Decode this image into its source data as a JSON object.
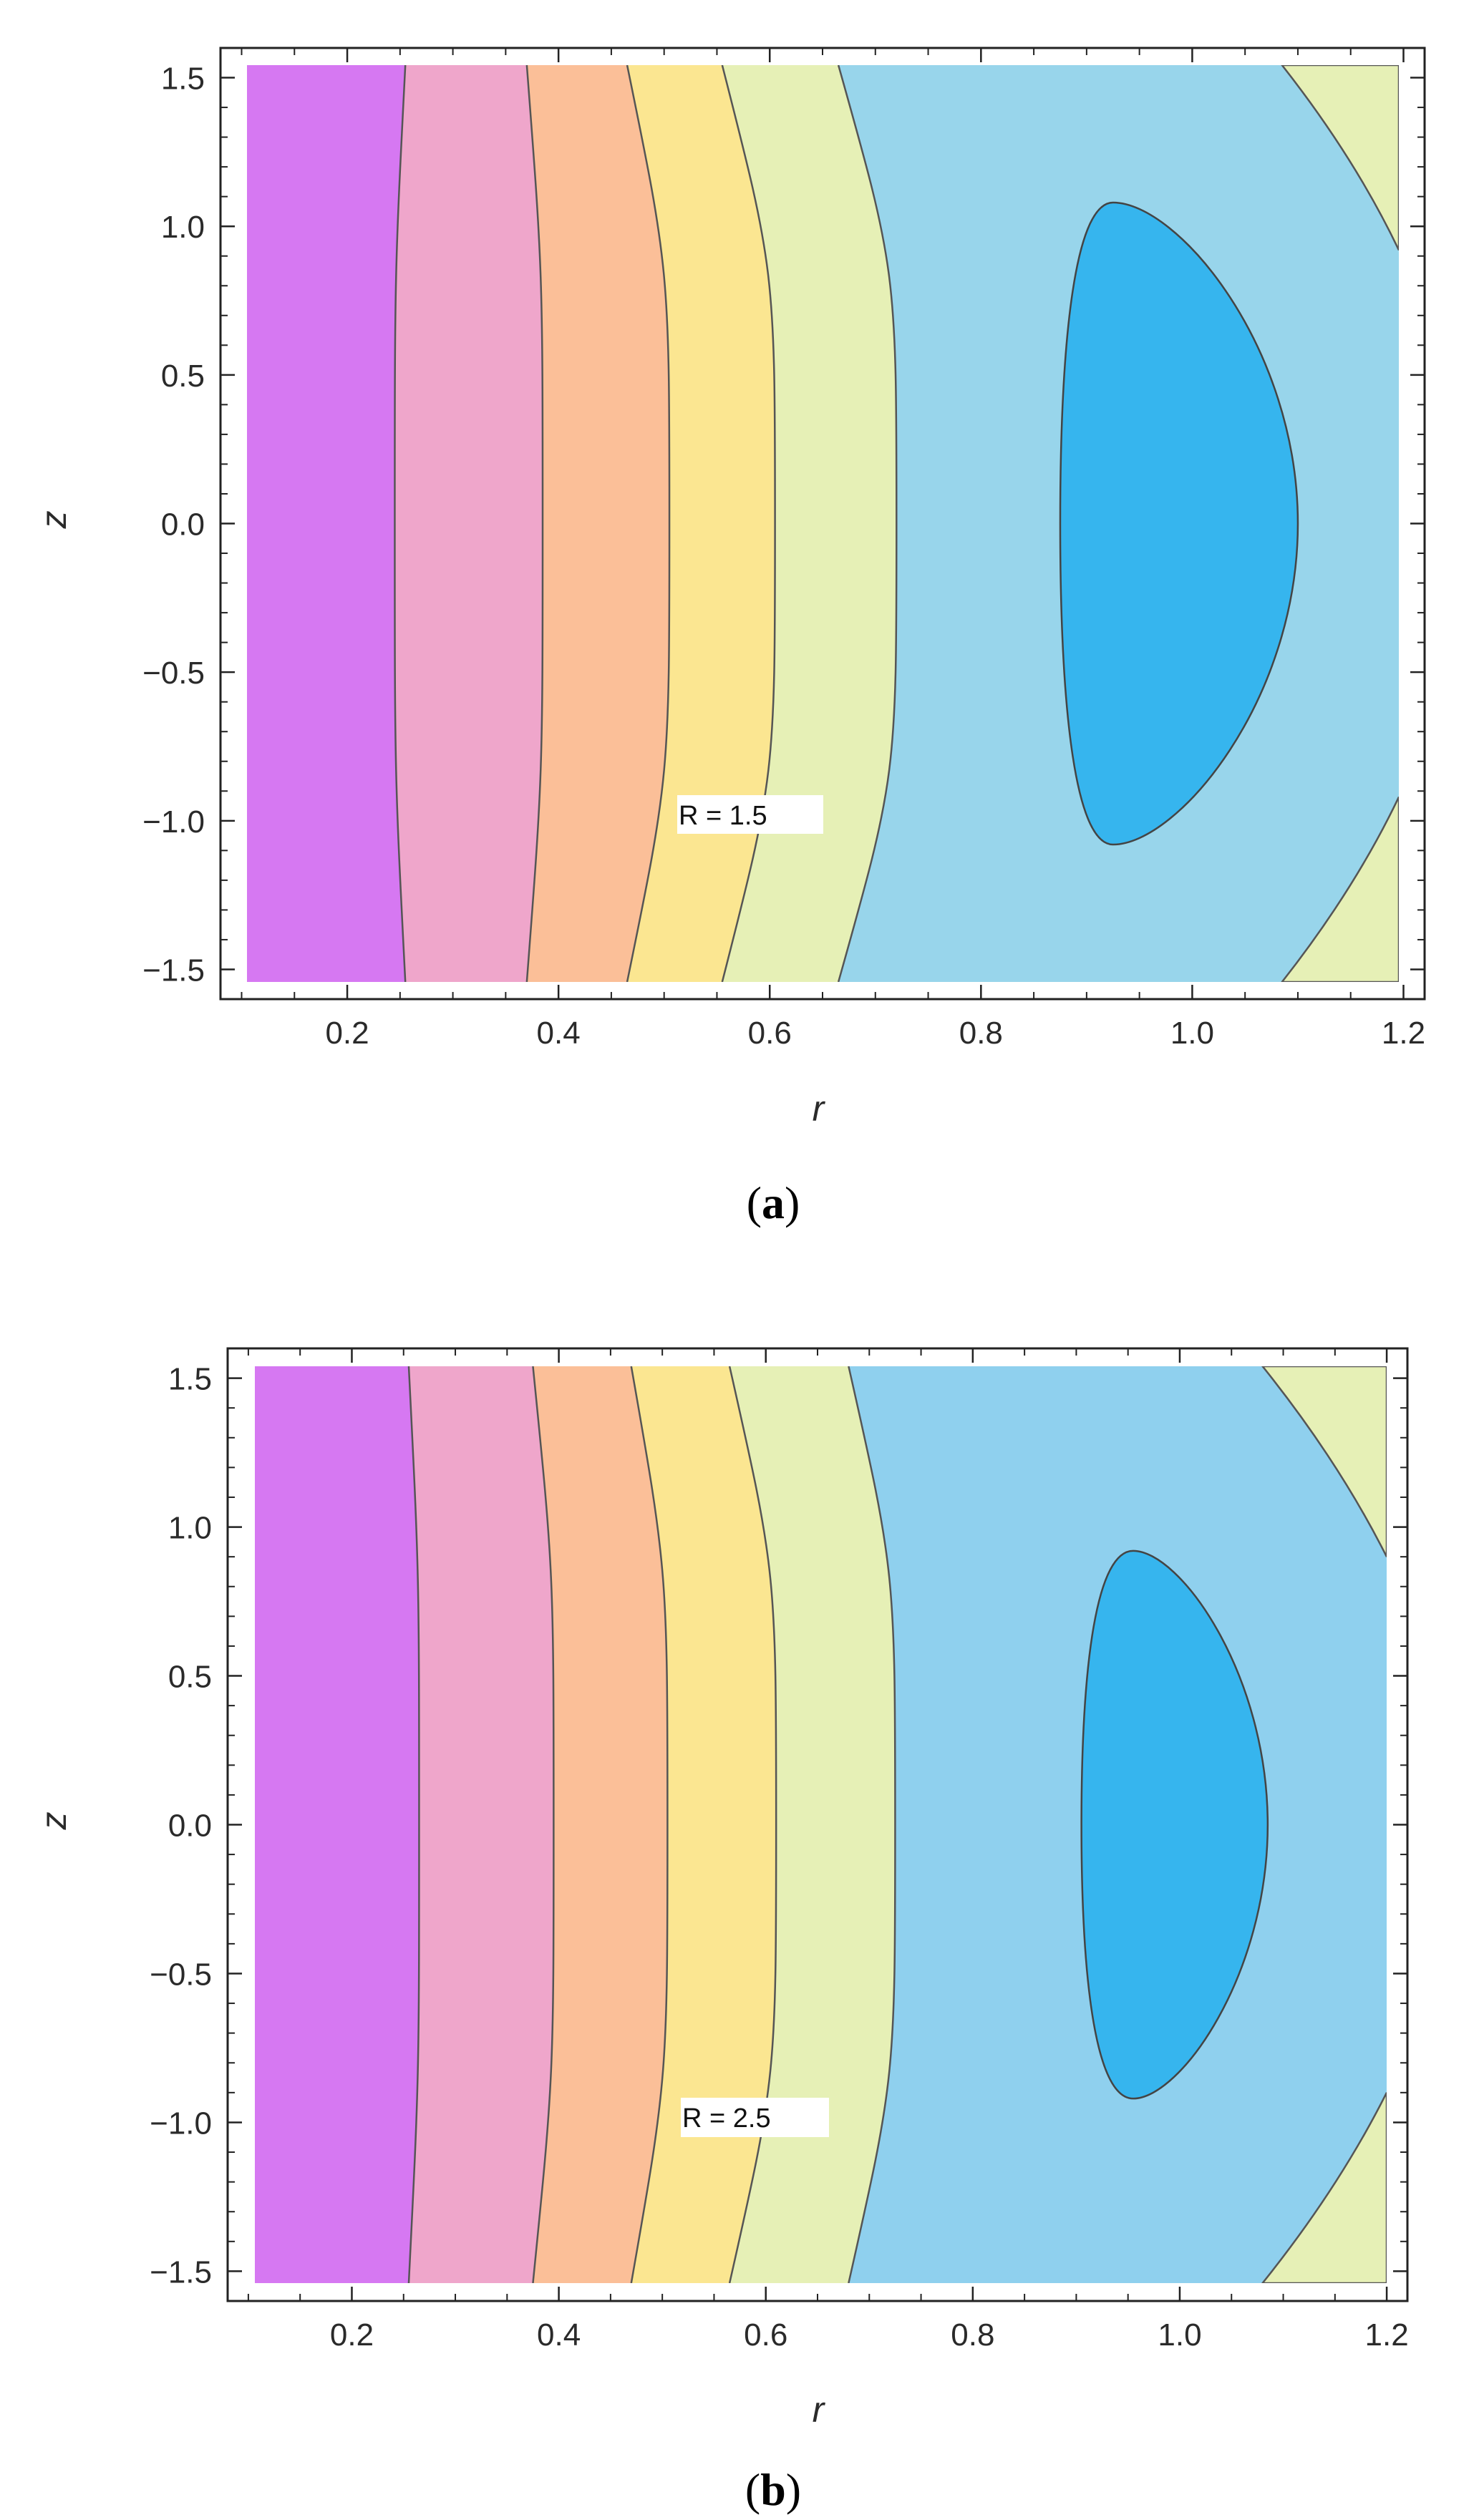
{
  "chart_data": [
    {
      "type": "contour",
      "panel": "a",
      "caption_letter": "a",
      "annotation": "R = 1.5",
      "xlabel": "r",
      "ylabel": "z",
      "xlim": [
        0.08,
        1.22
      ],
      "ylim": [
        -1.6,
        1.6
      ],
      "xticks": [
        "0.2",
        "0.4",
        "0.6",
        "0.8",
        "1.0",
        "1.2"
      ],
      "yticks": [
        "1.5",
        "1.0",
        "0.5",
        "0.0",
        "−0.5",
        "−1.0",
        "−1.5"
      ],
      "grid": false,
      "legend": "none",
      "bands": [
        {
          "color": "#d678f2",
          "r_mid": 0.245,
          "r_edge": 0.255
        },
        {
          "color": "#efa6cb",
          "r_mid": 0.385,
          "r_edge": 0.37
        },
        {
          "color": "#fbbf98",
          "r_mid": 0.505,
          "r_edge": 0.465
        },
        {
          "color": "#fbe691",
          "r_mid": 0.605,
          "r_edge": 0.555
        },
        {
          "color": "#e6f0b6",
          "r_mid": 0.72,
          "r_edge": 0.665
        },
        {
          "color": "#98d5eb"
        }
      ],
      "corner_color": "#e6f0b6",
      "corner_contour": {
        "r_top": 1.085,
        "z_edge": 0.92
      },
      "inner_region": {
        "color": "#36b5ee",
        "r_left": 0.875,
        "r_right": 1.1,
        "r_peak": 0.925,
        "z_half": 1.08
      }
    },
    {
      "type": "contour",
      "panel": "b",
      "caption_letter": "b",
      "annotation": "R = 2.5",
      "xlabel": "r",
      "ylabel": "z",
      "xlim": [
        0.08,
        1.22
      ],
      "ylim": [
        -1.6,
        1.6
      ],
      "xticks": [
        "0.2",
        "0.4",
        "0.6",
        "0.8",
        "1.0",
        "1.2"
      ],
      "yticks": [
        "1.5",
        "1.0",
        "0.5",
        "0.0",
        "−0.5",
        "−1.0",
        "−1.5"
      ],
      "grid": false,
      "legend": "none",
      "bands": [
        {
          "color": "#d678f2",
          "r_mid": 0.265,
          "r_edge": 0.255
        },
        {
          "color": "#efa6cb",
          "r_mid": 0.395,
          "r_edge": 0.375
        },
        {
          "color": "#fbbf98",
          "r_mid": 0.505,
          "r_edge": 0.47
        },
        {
          "color": "#fbe691",
          "r_mid": 0.61,
          "r_edge": 0.565
        },
        {
          "color": "#e6f0b6",
          "r_mid": 0.725,
          "r_edge": 0.68
        },
        {
          "color": "#8fd0ee"
        }
      ],
      "corner_color": "#e6f0b6",
      "corner_contour": {
        "r_top": 1.08,
        "z_edge": 0.9
      },
      "inner_region": {
        "color": "#36b5ee",
        "r_left": 0.905,
        "r_right": 1.085,
        "r_peak": 0.955,
        "z_half": 0.92
      }
    }
  ]
}
